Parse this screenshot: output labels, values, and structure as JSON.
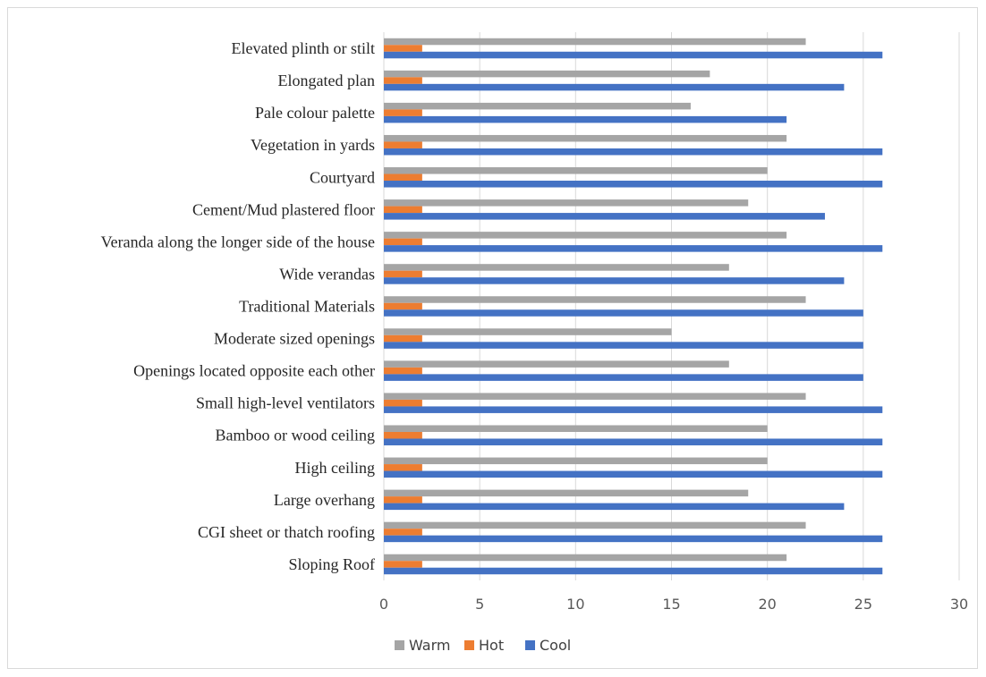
{
  "chart_data": {
    "type": "bar",
    "orientation": "horizontal",
    "categories": [
      "Sloping Roof",
      "CGI sheet or thatch roofing",
      "Large overhang",
      "High ceiling",
      "Bamboo or wood ceiling",
      "Small high-level ventilators",
      "Openings located opposite each other",
      "Moderate sized openings",
      "Traditional Materials",
      "Wide verandas",
      "Veranda along the longer side of the house",
      "Cement/Mud plastered floor",
      "Courtyard",
      "Vegetation in yards",
      "Pale colour palette",
      "Elongated plan",
      "Elevated plinth or stilt"
    ],
    "series": [
      {
        "name": "Warm",
        "color": "#a5a5a5",
        "values": [
          21,
          22,
          19,
          20,
          20,
          22,
          18,
          15,
          22,
          18,
          21,
          19,
          20,
          21,
          16,
          17,
          22
        ]
      },
      {
        "name": "Hot",
        "color": "#ed7d31",
        "values": [
          2,
          2,
          2,
          2,
          2,
          2,
          2,
          2,
          2,
          2,
          2,
          2,
          2,
          2,
          2,
          2,
          2
        ]
      },
      {
        "name": "Cool",
        "color": "#4472c4",
        "values": [
          26,
          26,
          24,
          26,
          26,
          26,
          25,
          25,
          25,
          24,
          26,
          23,
          26,
          26,
          21,
          24,
          26
        ]
      }
    ],
    "xlim": [
      0,
      30
    ],
    "x_ticks": [
      "0",
      "5",
      "10",
      "15",
      "20",
      "25",
      "30"
    ],
    "title": "",
    "xlabel": "",
    "ylabel": "",
    "grid": "vertical",
    "legend_position": "bottom"
  }
}
